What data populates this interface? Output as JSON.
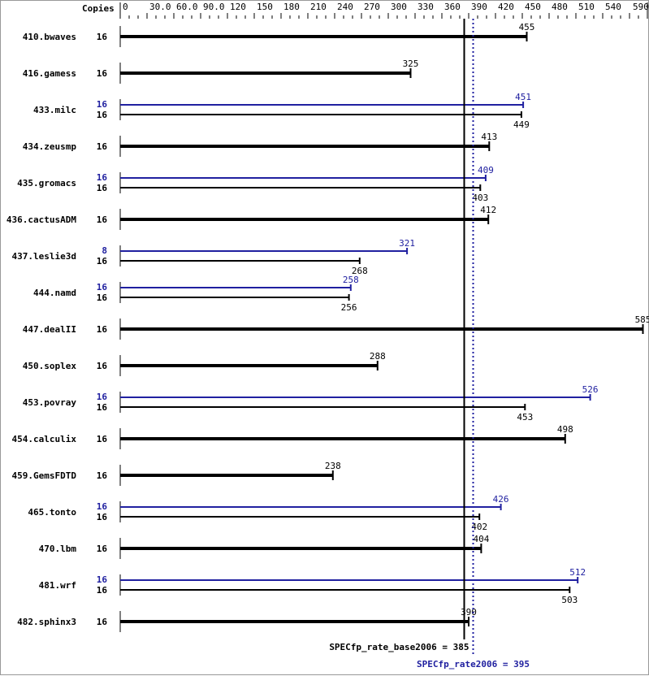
{
  "chart_data": {
    "type": "bar",
    "orientation": "horizontal",
    "copies_header": "Copies",
    "xlim": [
      0,
      590
    ],
    "ticks": [
      "0",
      "30.0",
      "60.0",
      "90.0",
      "120",
      "150",
      "180",
      "210",
      "240",
      "270",
      "300",
      "330",
      "360",
      "390",
      "420",
      "450",
      "480",
      "510",
      "540",
      "590"
    ],
    "tick_values": [
      0,
      30,
      60,
      90,
      120,
      150,
      180,
      210,
      240,
      270,
      300,
      330,
      360,
      390,
      420,
      450,
      480,
      510,
      540,
      590
    ],
    "colors": {
      "base": "#000000",
      "peak": "#2020a0"
    },
    "benchmarks": [
      {
        "name": "410.bwaves",
        "base_copies": "16",
        "base": 455
      },
      {
        "name": "416.gamess",
        "base_copies": "16",
        "base": 325
      },
      {
        "name": "433.milc",
        "peak_copies": "16",
        "peak": 451,
        "base_copies": "16",
        "base": 449
      },
      {
        "name": "434.zeusmp",
        "base_copies": "16",
        "base": 413
      },
      {
        "name": "435.gromacs",
        "peak_copies": "16",
        "peak": 409,
        "base_copies": "16",
        "base": 403
      },
      {
        "name": "436.cactusADM",
        "base_copies": "16",
        "base": 412
      },
      {
        "name": "437.leslie3d",
        "peak_copies": "8",
        "peak": 321,
        "base_copies": "16",
        "base": 268
      },
      {
        "name": "444.namd",
        "peak_copies": "16",
        "peak": 258,
        "base_copies": "16",
        "base": 256
      },
      {
        "name": "447.dealII",
        "base_copies": "16",
        "base": 585
      },
      {
        "name": "450.soplex",
        "base_copies": "16",
        "base": 288
      },
      {
        "name": "453.povray",
        "peak_copies": "16",
        "peak": 526,
        "base_copies": "16",
        "base": 453
      },
      {
        "name": "454.calculix",
        "base_copies": "16",
        "base": 498
      },
      {
        "name": "459.GemsFDTD",
        "base_copies": "16",
        "base": 238
      },
      {
        "name": "465.tonto",
        "peak_copies": "16",
        "peak": 426,
        "base_copies": "16",
        "base": 402
      },
      {
        "name": "470.lbm",
        "base_copies": "16",
        "base": 404
      },
      {
        "name": "481.wrf",
        "peak_copies": "16",
        "peak": 512,
        "base_copies": "16",
        "base": 503
      },
      {
        "name": "482.sphinx3",
        "base_copies": "16",
        "base": 390
      }
    ],
    "summary": {
      "base_label": "SPECfp_rate_base2006 = 385",
      "base_value": 385,
      "peak_label": "SPECfp_rate2006 = 395",
      "peak_value": 395
    }
  }
}
